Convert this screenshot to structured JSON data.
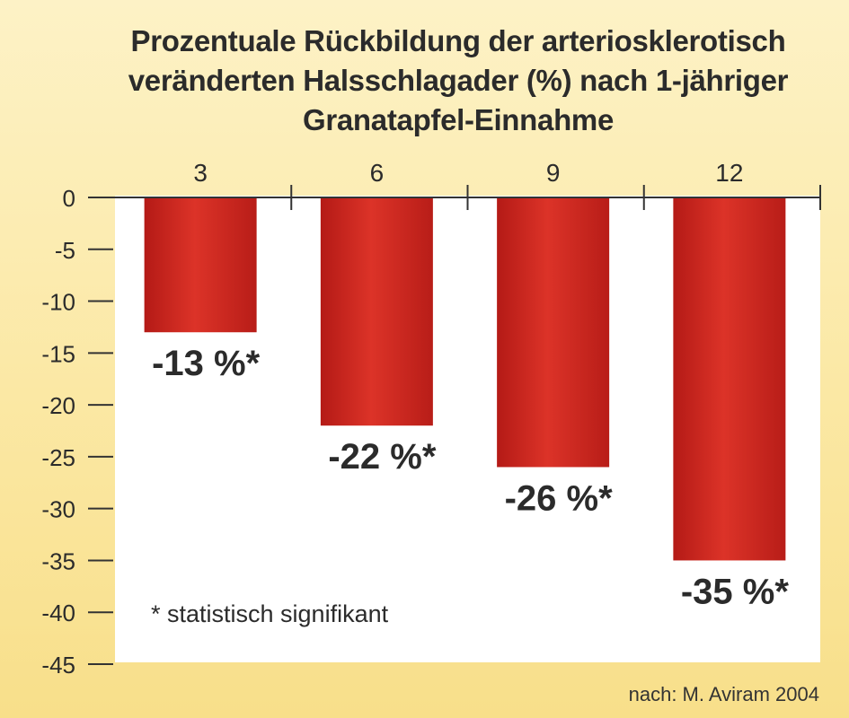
{
  "chart_data": {
    "type": "bar",
    "title_lines": [
      "Prozentuale Rückbildung der arteriosklerotisch",
      "veränderten Halsschlagader (%) nach 1-jähriger",
      "Granatapfel-Einnahme"
    ],
    "categories": [
      "3",
      "6",
      "9",
      "12"
    ],
    "values": [
      -13,
      -22,
      -26,
      -35
    ],
    "data_labels": [
      "-13 %*",
      "-22 %*",
      "-26 %*",
      "-35 %*"
    ],
    "y_ticks": [
      "0",
      "-5",
      "-10",
      "-15",
      "-20",
      "-25",
      "-30",
      "-35",
      "-40",
      "-45"
    ],
    "ylim": [
      -45,
      0
    ],
    "x_axis_position": "top",
    "grid": false,
    "footnote": "* statistisch signifikant",
    "source": "nach: M. Aviram 2004",
    "colors": {
      "bar": "#c8231d",
      "bar_highlight": "#de3a2c",
      "plot_background": "#ffffff",
      "axis": "#333333"
    }
  }
}
